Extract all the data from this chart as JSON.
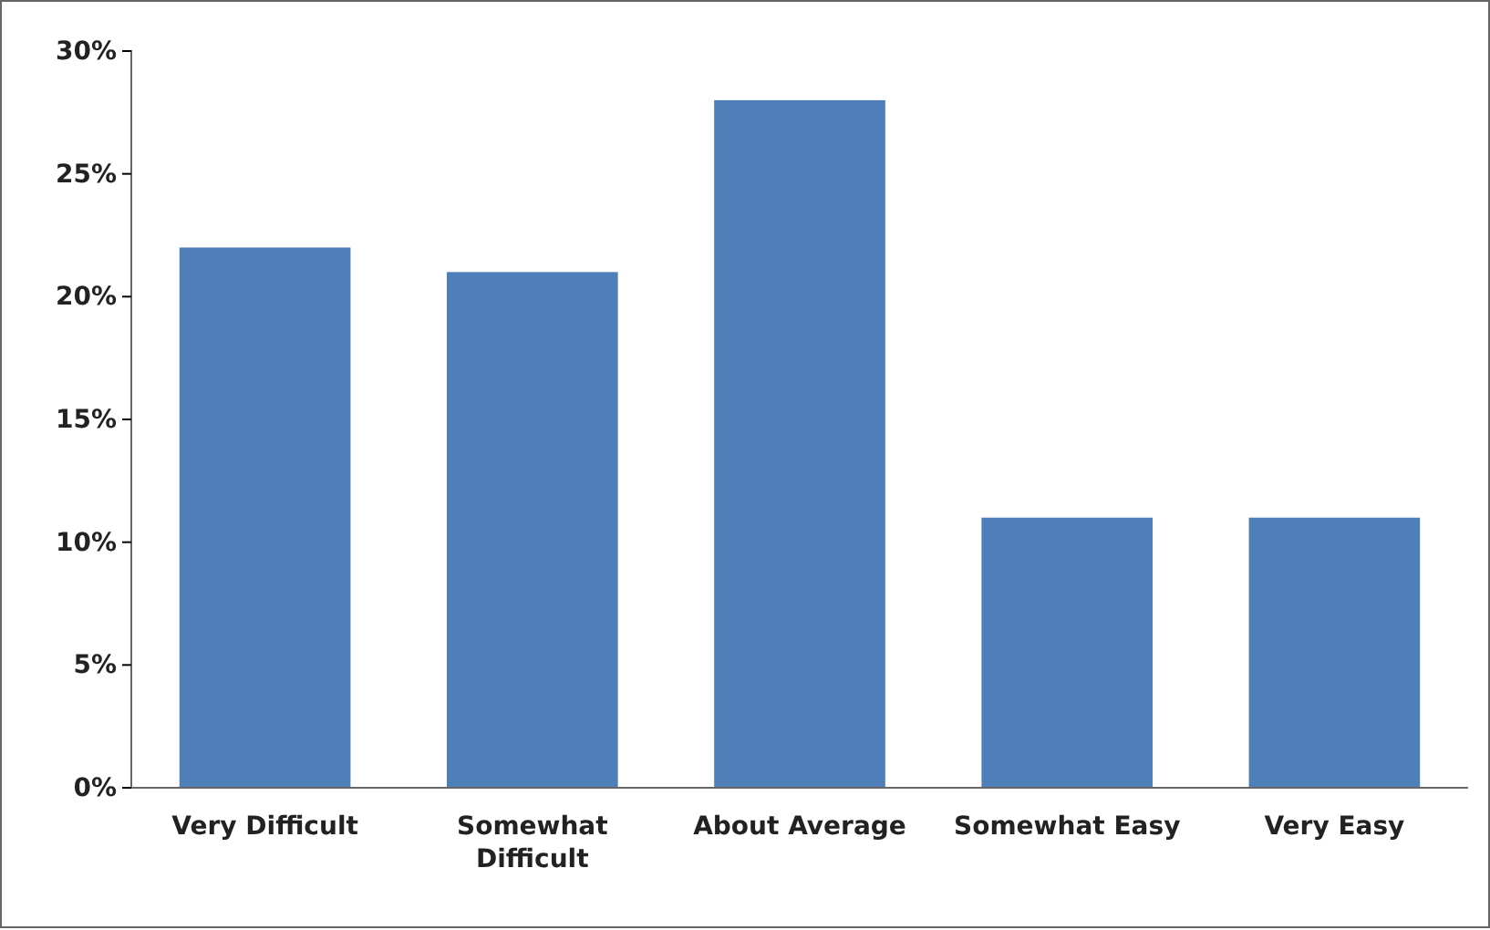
{
  "chart_data": {
    "type": "bar",
    "categories": [
      "Very Difficult",
      "Somewhat Difficult",
      "About Average",
      "Somewhat Easy",
      "Very Easy"
    ],
    "values": [
      22,
      21,
      28,
      11,
      11
    ],
    "color": "#4f7fb8",
    "ylim": [
      0,
      30
    ],
    "yticks": [
      {
        "value": 0,
        "label": "0%"
      },
      {
        "value": 5,
        "label": "5%"
      },
      {
        "value": 10,
        "label": "10%"
      },
      {
        "value": 15,
        "label": "15%"
      },
      {
        "value": 20,
        "label": "20%"
      },
      {
        "value": 25,
        "label": "25%"
      },
      {
        "value": 30,
        "label": "30%"
      }
    ],
    "grid": false
  }
}
